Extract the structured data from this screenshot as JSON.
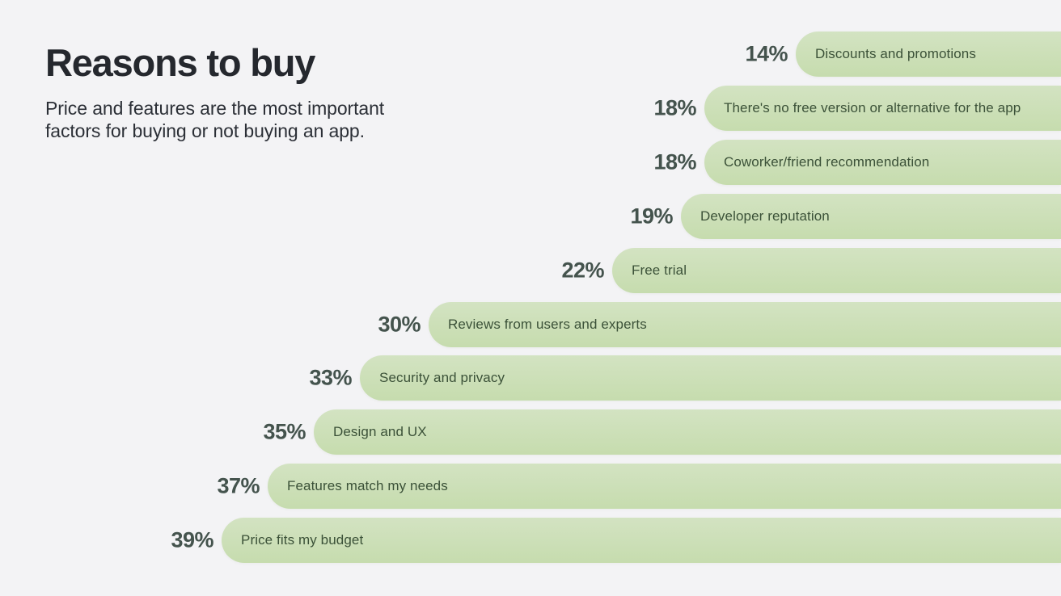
{
  "header": {
    "title": "Reasons to buy",
    "subtitle_line1": "Price and features are the most important",
    "subtitle_line2": "factors for buying or not buying an app."
  },
  "chart_data": {
    "type": "bar",
    "orientation": "horizontal",
    "title": "Reasons to buy",
    "subtitle": "Price and features are the most important factors for buying or not buying an app.",
    "xlabel": "",
    "ylabel": "",
    "unit": "%",
    "categories": [
      "Discounts and promotions",
      "There's no free version or alternative for the app",
      "Coworker/friend recommendation",
      "Developer reputation",
      "Free trial",
      "Reviews from users and experts",
      "Security and privacy",
      "Design and UX",
      "Features match my needs",
      "Price fits my budget"
    ],
    "values": [
      14,
      18,
      18,
      19,
      22,
      30,
      33,
      35,
      37,
      39
    ],
    "value_labels": [
      "14%",
      "18%",
      "18%",
      "19%",
      "22%",
      "30%",
      "33%",
      "35%",
      "37%",
      "39%"
    ],
    "layout_hints": {
      "bars_right_aligned": true,
      "bars_clipped_at_right_edge": true,
      "value_labels_left_of_bars": true,
      "category_labels_inside_bars": true,
      "grid": "off",
      "legend": "none",
      "sort": "ascending top to bottom"
    },
    "colors": {
      "background": "#f3f3f5",
      "bar_gradient_top": "#d3e3c2",
      "bar_gradient_bottom": "#c6dcae",
      "value_label": "#44534d",
      "category_label": "#3b5138",
      "title": "#25282e",
      "subtitle": "#2b2f36"
    }
  }
}
